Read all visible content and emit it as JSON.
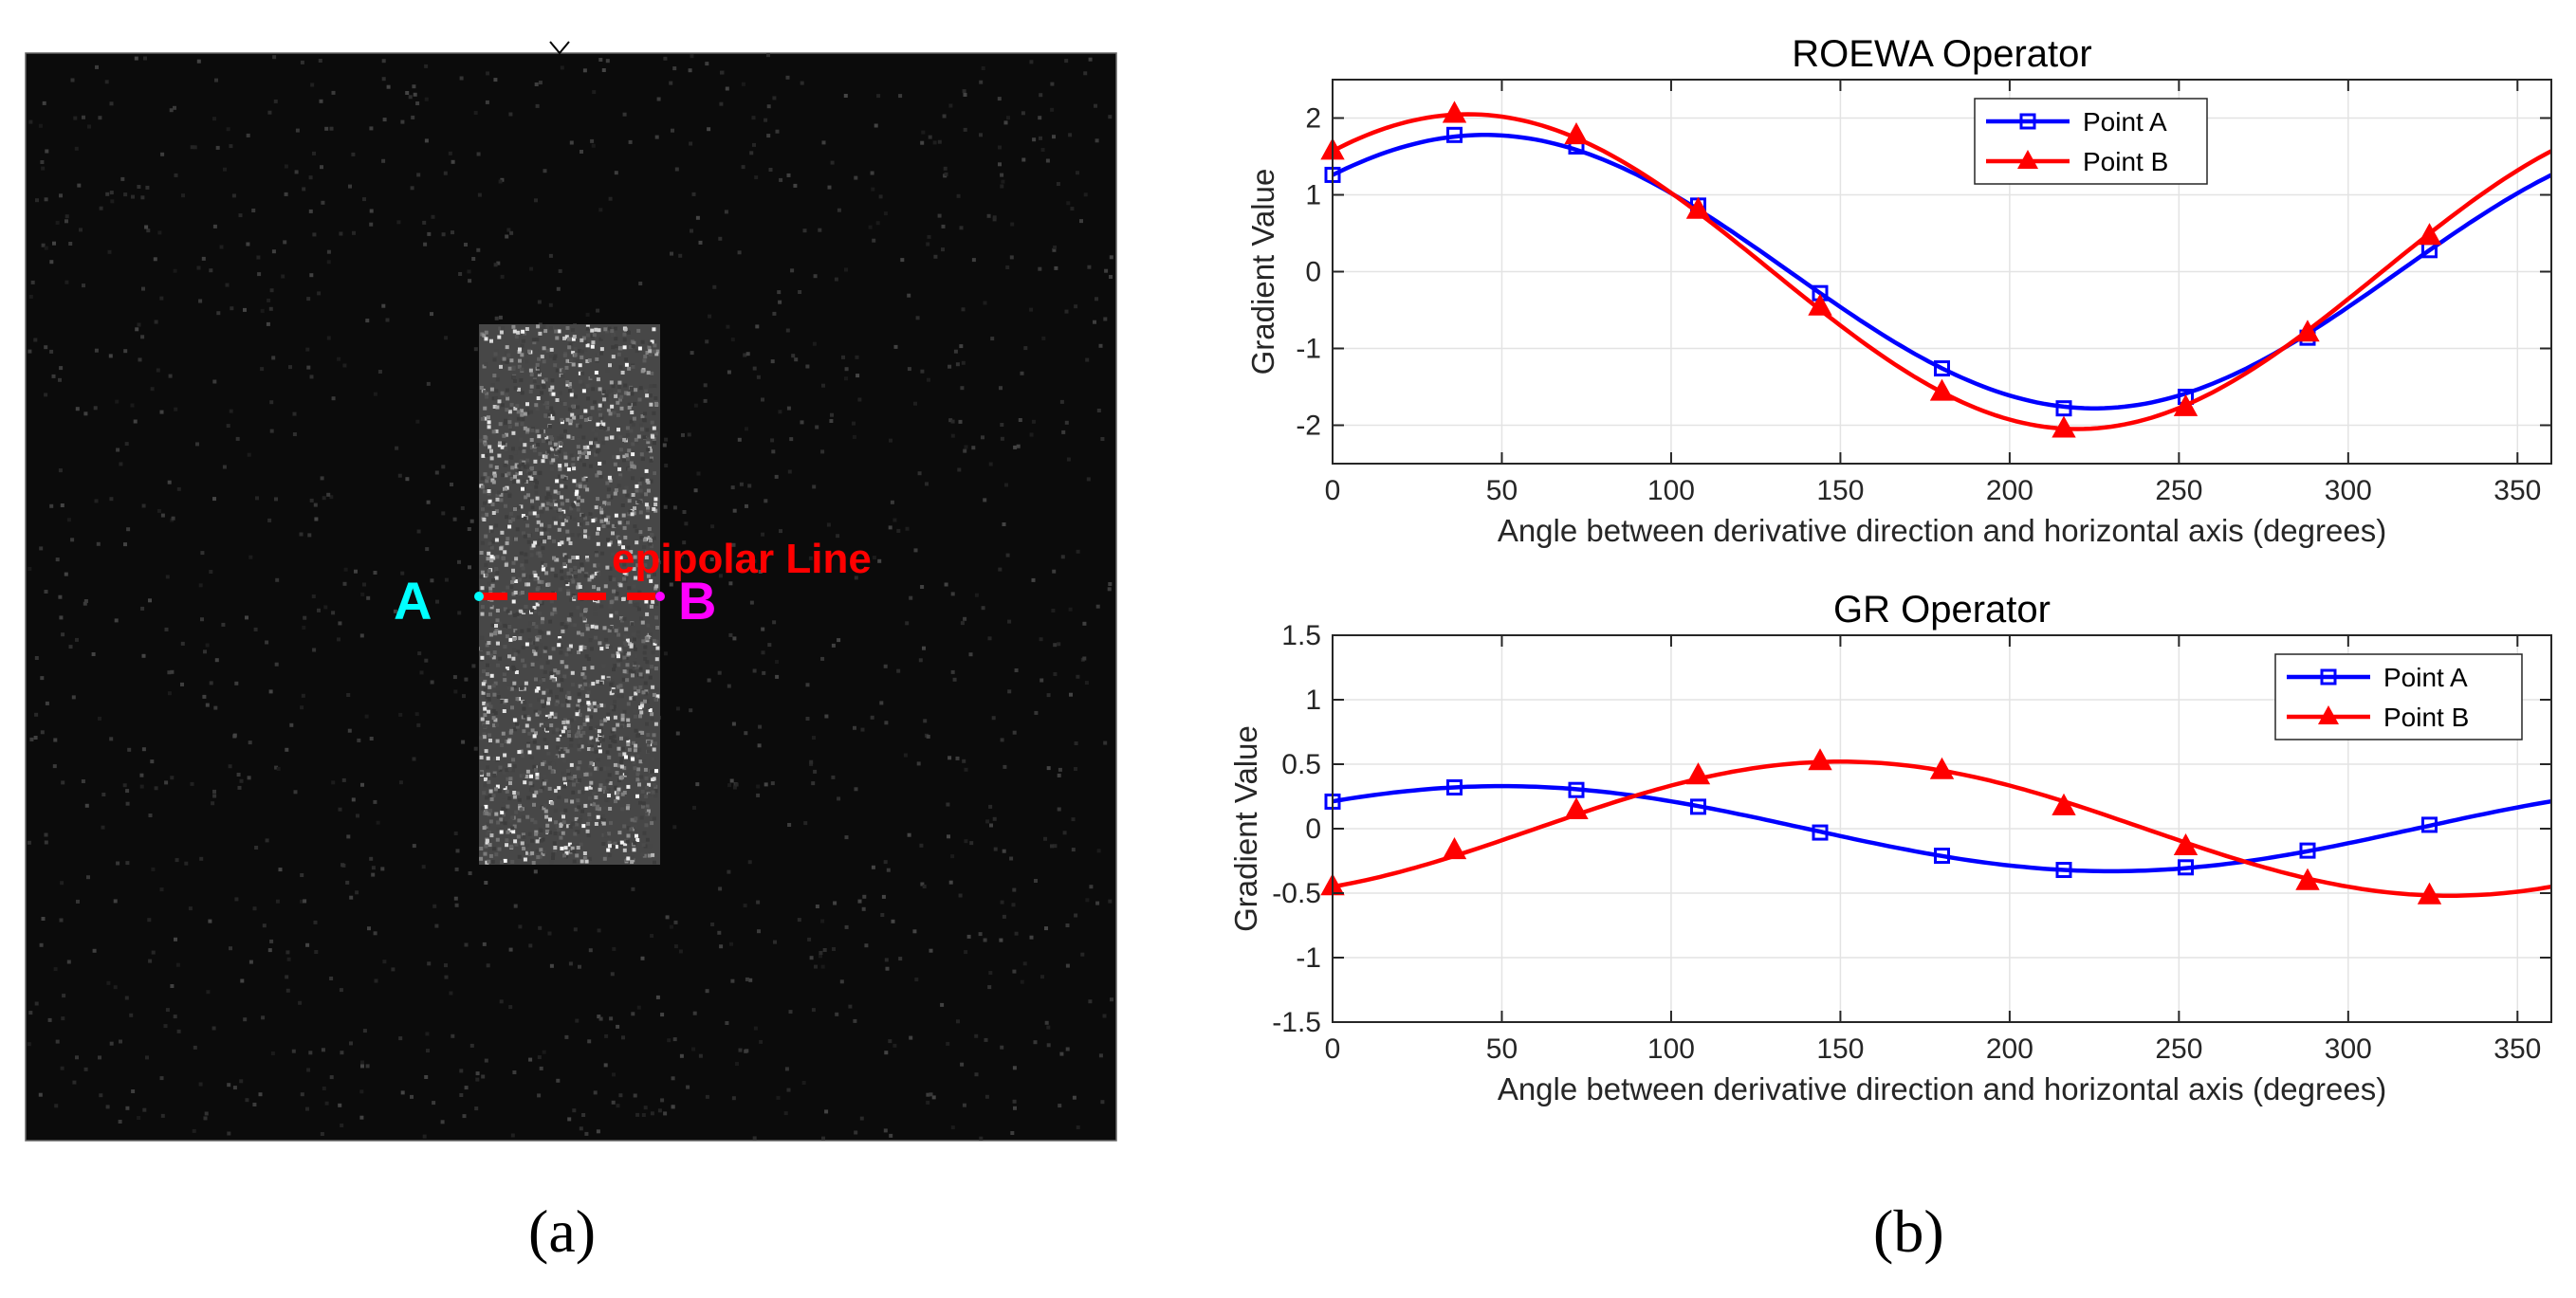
{
  "panel_a": {
    "label_a": "A",
    "label_b": "B",
    "line_label": "epipolar Line",
    "caption": "(a)",
    "colors": {
      "a": "#00ffff",
      "b": "#ff00ff",
      "line": "#ff0000",
      "background": "#0b0b0b"
    }
  },
  "panel_b": {
    "caption": "(b)"
  },
  "chart_data": [
    {
      "type": "line",
      "title": "ROEWA Operator",
      "xlabel": "Angle between derivative direction and horizontal axis (degrees)",
      "ylabel": "Gradient Value",
      "xlim": [
        0,
        360
      ],
      "ylim": [
        -2.5,
        2.5
      ],
      "xticks": [
        0,
        50,
        100,
        150,
        200,
        250,
        300,
        350
      ],
      "yticks": [
        -2,
        -1,
        0,
        1,
        2
      ],
      "grid": true,
      "legend": "top-right",
      "marker_x": [
        0,
        36,
        72,
        108,
        144,
        180,
        216,
        252,
        288,
        324
      ],
      "series": [
        {
          "name": "Point A",
          "color": "#0000ff",
          "marker": "square",
          "amplitude": 1.78,
          "phase_deg": 45,
          "marker_y": [
            1.26,
            1.78,
            1.63,
            0.86,
            -0.28,
            -1.26,
            -1.78,
            -1.63,
            -0.86,
            0.28
          ]
        },
        {
          "name": "Point B",
          "color": "#ff0000",
          "marker": "triangle",
          "amplitude": 2.05,
          "phase_deg": 40,
          "marker_y": [
            1.57,
            2.05,
            1.77,
            0.8,
            -0.46,
            -1.57,
            -2.05,
            -1.77,
            -0.8,
            0.46
          ]
        }
      ]
    },
    {
      "type": "line",
      "title": "GR Operator",
      "xlabel": "Angle between derivative direction and horizontal axis (degrees)",
      "ylabel": "Gradient Value",
      "xlim": [
        0,
        360
      ],
      "ylim": [
        -1.5,
        1.5
      ],
      "xticks": [
        0,
        50,
        100,
        150,
        200,
        250,
        300,
        350
      ],
      "yticks": [
        -1.5,
        -1,
        -0.5,
        0,
        0.5,
        1,
        1.5
      ],
      "grid": true,
      "legend": "top-right",
      "marker_x": [
        0,
        36,
        72,
        108,
        144,
        180,
        216,
        252,
        288,
        324
      ],
      "series": [
        {
          "name": "Point A",
          "color": "#0000ff",
          "marker": "square",
          "amplitude": 0.33,
          "phase_deg": 50,
          "marker_y": [
            0.21,
            0.32,
            0.3,
            0.17,
            -0.03,
            -0.21,
            -0.32,
            -0.3,
            -0.17,
            0.03
          ]
        },
        {
          "name": "Point B",
          "color": "#ff0000",
          "marker": "triangle",
          "amplitude": 0.52,
          "phase_deg": 150,
          "marker_y": [
            -0.45,
            -0.17,
            0.14,
            0.41,
            0.52,
            0.45,
            0.17,
            -0.14,
            -0.41,
            -0.52
          ]
        }
      ]
    }
  ]
}
